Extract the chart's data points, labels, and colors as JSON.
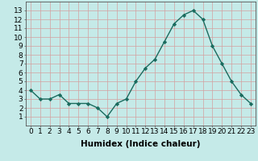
{
  "x": [
    0,
    1,
    2,
    3,
    4,
    5,
    6,
    7,
    8,
    9,
    10,
    11,
    12,
    13,
    14,
    15,
    16,
    17,
    18,
    19,
    20,
    21,
    22,
    23
  ],
  "y": [
    4.0,
    3.0,
    3.0,
    3.5,
    2.5,
    2.5,
    2.5,
    2.0,
    1.0,
    2.5,
    3.0,
    5.0,
    6.5,
    7.5,
    9.5,
    11.5,
    12.5,
    13.0,
    12.0,
    9.0,
    7.0,
    5.0,
    3.5,
    2.5
  ],
  "xlabel": "Humidex (Indice chaleur)",
  "xlim": [
    -0.5,
    23.5
  ],
  "ylim": [
    0,
    14
  ],
  "yticks": [
    1,
    2,
    3,
    4,
    5,
    6,
    7,
    8,
    9,
    10,
    11,
    12,
    13
  ],
  "xtick_labels": [
    "0",
    "1",
    "2",
    "3",
    "4",
    "5",
    "6",
    "7",
    "8",
    "9",
    "10",
    "11",
    "12",
    "13",
    "14",
    "15",
    "16",
    "17",
    "18",
    "19",
    "20",
    "21",
    "22",
    "23"
  ],
  "line_color": "#1a6b5e",
  "marker": "D",
  "marker_size": 2.2,
  "bg_color": "#c5eae8",
  "grid_color": "#b8d8d6",
  "tick_fontsize": 6.5,
  "xlabel_fontsize": 7.5,
  "linewidth": 1.0
}
